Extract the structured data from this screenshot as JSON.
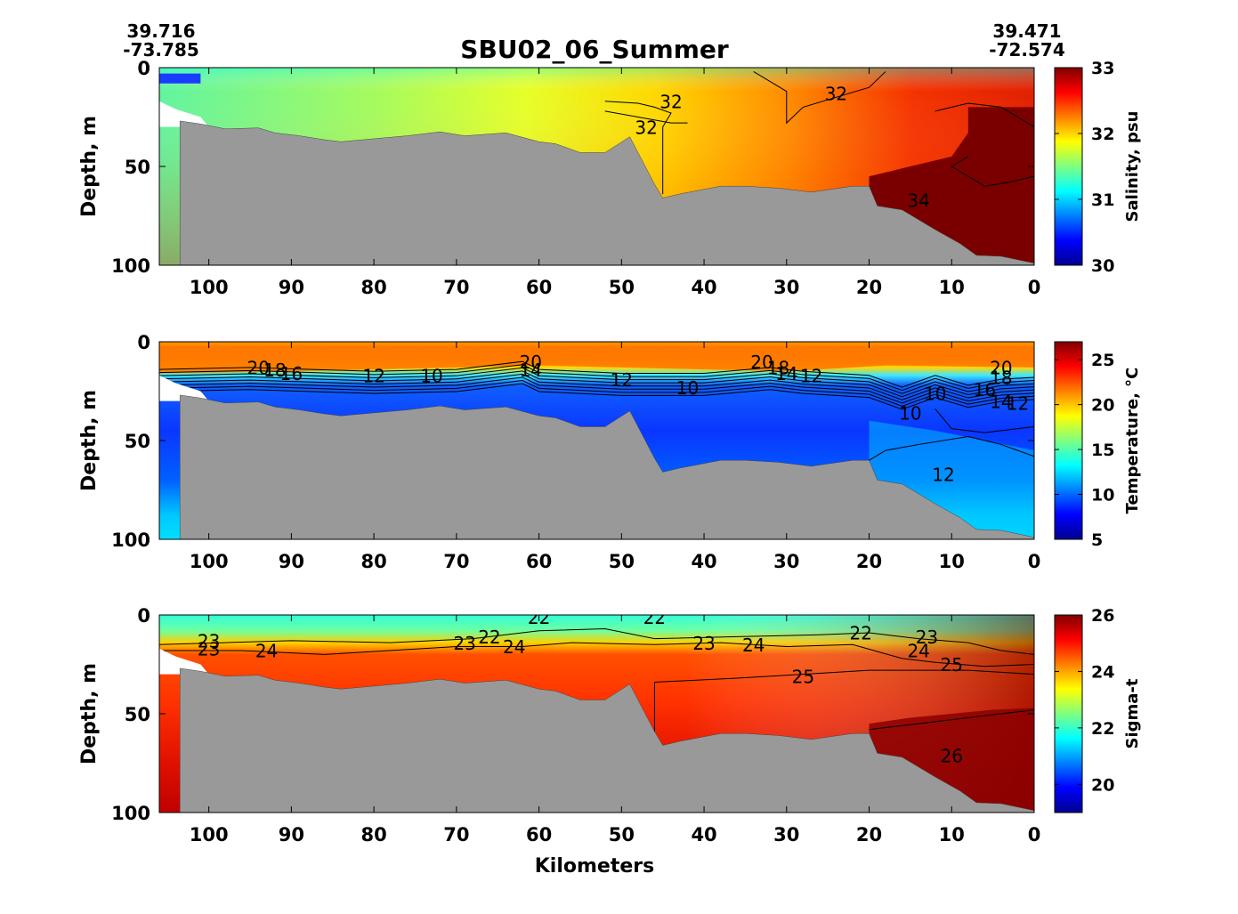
{
  "figure": {
    "title": "SBU02_06_Summer",
    "start_coords": {
      "lat": "39.716",
      "lon": "-73.785"
    },
    "end_coords": {
      "lat": "39.471",
      "lon": "-72.574"
    },
    "xlabel": "Kilometers"
  },
  "colors": {
    "bathymetry": "#999999",
    "contour": "#000000"
  },
  "chart_data": [
    {
      "type": "heatmap",
      "variable": "salinity",
      "ylabel": "Depth, m",
      "colorbar_label": "Salinity, psu",
      "xlim": [
        106,
        0
      ],
      "ylim": [
        0,
        100
      ],
      "xticks": [
        100,
        90,
        80,
        70,
        60,
        50,
        40,
        30,
        20,
        10,
        0
      ],
      "yticks": [
        0,
        50,
        100
      ],
      "clim": [
        30,
        33
      ],
      "cticks": [
        30,
        31,
        32,
        33
      ],
      "colormap": "jet",
      "contour_labels": [
        {
          "text": "32",
          "x": 44,
          "y": 18
        },
        {
          "text": "32",
          "x": 24,
          "y": 14
        },
        {
          "text": "32",
          "x": 47,
          "y": 31
        },
        {
          "text": "34",
          "x": 14,
          "y": 68
        }
      ]
    },
    {
      "type": "heatmap",
      "variable": "temperature",
      "ylabel": "Depth, m",
      "colorbar_label": "Temperature, °C",
      "xlim": [
        106,
        0
      ],
      "ylim": [
        0,
        100
      ],
      "xticks": [
        100,
        90,
        80,
        70,
        60,
        50,
        40,
        30,
        20,
        10,
        0
      ],
      "yticks": [
        0,
        50,
        100
      ],
      "clim": [
        5,
        27
      ],
      "cticks": [
        5,
        10,
        15,
        20,
        25
      ],
      "colormap": "jet",
      "contour_labels": [
        {
          "text": "20",
          "x": 94,
          "y": 14
        },
        {
          "text": "18",
          "x": 92,
          "y": 15
        },
        {
          "text": "16",
          "x": 90,
          "y": 17
        },
        {
          "text": "12",
          "x": 80,
          "y": 18
        },
        {
          "text": "10",
          "x": 73,
          "y": 18
        },
        {
          "text": "20",
          "x": 61,
          "y": 11
        },
        {
          "text": "14",
          "x": 61,
          "y": 15
        },
        {
          "text": "12",
          "x": 50,
          "y": 20
        },
        {
          "text": "10",
          "x": 42,
          "y": 24
        },
        {
          "text": "20",
          "x": 33,
          "y": 11
        },
        {
          "text": "18",
          "x": 31,
          "y": 14
        },
        {
          "text": "14",
          "x": 30,
          "y": 17
        },
        {
          "text": "12",
          "x": 27,
          "y": 18
        },
        {
          "text": "20",
          "x": 4,
          "y": 14
        },
        {
          "text": "18",
          "x": 4,
          "y": 19
        },
        {
          "text": "16",
          "x": 6,
          "y": 25
        },
        {
          "text": "14",
          "x": 4,
          "y": 31
        },
        {
          "text": "12",
          "x": 2,
          "y": 32
        },
        {
          "text": "10",
          "x": 12,
          "y": 27
        },
        {
          "text": "10",
          "x": 15,
          "y": 37
        },
        {
          "text": "12",
          "x": 11,
          "y": 68
        }
      ]
    },
    {
      "type": "heatmap",
      "variable": "sigma-t",
      "ylabel": "Depth, m",
      "colorbar_label": "Sigma-t",
      "xlim": [
        106,
        0
      ],
      "ylim": [
        0,
        100
      ],
      "xticks": [
        100,
        90,
        80,
        70,
        60,
        50,
        40,
        30,
        20,
        10,
        0
      ],
      "yticks": [
        0,
        50,
        100
      ],
      "clim": [
        19,
        26
      ],
      "cticks": [
        20,
        22,
        24,
        26
      ],
      "colormap": "jet",
      "contour_labels": [
        {
          "text": "23",
          "x": 100,
          "y": 14
        },
        {
          "text": "23",
          "x": 100,
          "y": 18
        },
        {
          "text": "24",
          "x": 93,
          "y": 19
        },
        {
          "text": "23",
          "x": 69,
          "y": 15
        },
        {
          "text": "22",
          "x": 66,
          "y": 12
        },
        {
          "text": "24",
          "x": 63,
          "y": 17
        },
        {
          "text": "22",
          "x": 60,
          "y": 2
        },
        {
          "text": "22",
          "x": 46,
          "y": 2
        },
        {
          "text": "23",
          "x": 40,
          "y": 15
        },
        {
          "text": "24",
          "x": 34,
          "y": 16
        },
        {
          "text": "25",
          "x": 28,
          "y": 32
        },
        {
          "text": "22",
          "x": 21,
          "y": 10
        },
        {
          "text": "23",
          "x": 13,
          "y": 12
        },
        {
          "text": "24",
          "x": 14,
          "y": 19
        },
        {
          "text": "25",
          "x": 10,
          "y": 26
        },
        {
          "text": "26",
          "x": 10,
          "y": 72
        }
      ]
    }
  ]
}
